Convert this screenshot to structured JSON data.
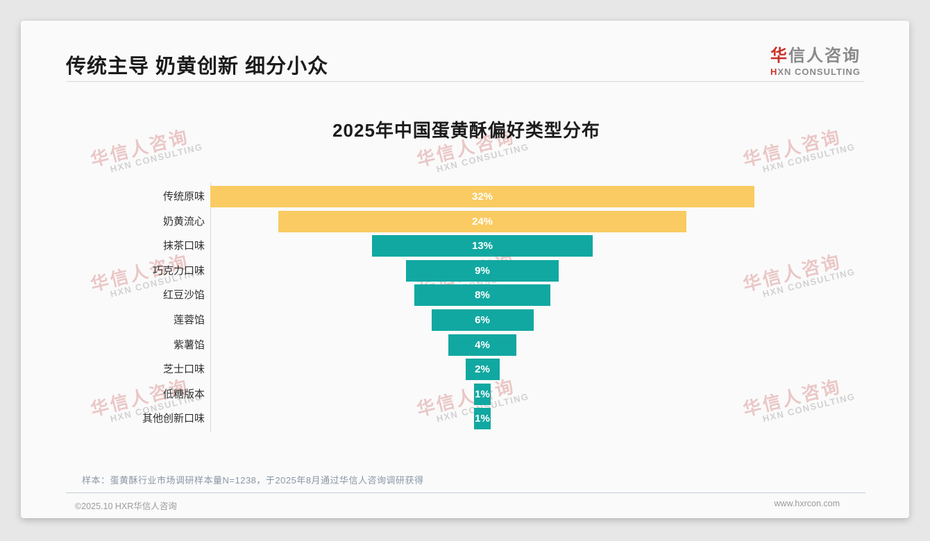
{
  "page": {
    "header": {
      "title": "传统主导 奶黄创新 细分小众"
    },
    "logo": {
      "cn_first": "华",
      "cn_rest": "信人咨询",
      "en_first": "H",
      "en_rest": "XN CONSULTING"
    },
    "watermark": {
      "cn": "华信人咨询",
      "en": "HXN CONSULTING"
    },
    "footnote": "样本：蛋黄酥行业市场调研样本量N=1238，于2025年8月通过华信人咨询调研获得",
    "footer": {
      "left": "©2025.10 HXR华信人咨询",
      "right": "www.hxrcon.com"
    }
  },
  "chart_data": {
    "type": "bar",
    "variant": "centered-funnel-horizontal",
    "title": "2025年中国蛋黄酥偏好类型分布",
    "categories": [
      "传统原味",
      "奶黄流心",
      "抹茶口味",
      "巧克力口味",
      "红豆沙馅",
      "莲蓉馅",
      "紫薯馅",
      "芝士口味",
      "低糖版本",
      "其他创新口味"
    ],
    "values": [
      32,
      24,
      13,
      9,
      8,
      6,
      4,
      2,
      1,
      1
    ],
    "value_labels": [
      "32%",
      "24%",
      "13%",
      "9%",
      "8%",
      "6%",
      "4%",
      "2%",
      "1%",
      "1%"
    ],
    "bar_colors": [
      "#FACB62",
      "#FACB62",
      "#11A8A1",
      "#11A8A1",
      "#11A8A1",
      "#11A8A1",
      "#11A8A1",
      "#11A8A1",
      "#11A8A1",
      "#11A8A1"
    ],
    "highlight_color": "#FACB62",
    "base_color": "#11A8A1",
    "value_label_color": "#FFFFFF",
    "axis_line_color": "#D9D9D9",
    "xlim": [
      0,
      32
    ],
    "legend": "none",
    "grid": "off"
  }
}
